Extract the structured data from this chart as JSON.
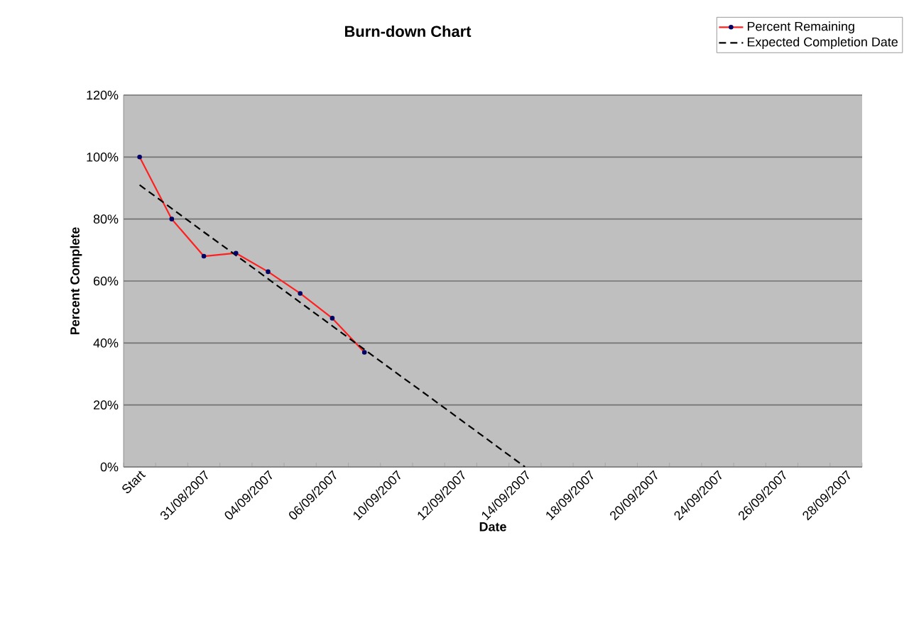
{
  "chart_data": {
    "type": "line",
    "title": "Burn-down Chart",
    "xlabel": "Date",
    "ylabel": "Percent Complete",
    "categories": [
      "Start",
      null,
      "31/08/2007",
      null,
      "04/09/2007",
      null,
      "06/09/2007",
      null,
      "10/09/2007",
      null,
      "12/09/2007",
      null,
      "14/09/2007",
      null,
      "18/09/2007",
      null,
      "20/09/2007",
      null,
      "24/09/2007",
      null,
      "26/09/2007",
      null,
      "28/09/2007"
    ],
    "series": [
      {
        "name": "Percent Remaining",
        "color": "#ff2020",
        "marker": "circle",
        "line_style": "solid",
        "values": [
          100,
          80,
          68,
          69,
          63,
          56,
          48,
          37,
          null,
          null,
          null,
          null,
          null,
          null,
          null,
          null,
          null,
          null,
          null,
          null,
          null,
          null,
          null
        ]
      },
      {
        "name": "Expected Completion Date",
        "color": "#000000",
        "marker": "none",
        "line_style": "dashed",
        "values": [
          91,
          83.4,
          75.8,
          68.3,
          60.7,
          53.1,
          45.5,
          37.9,
          30.3,
          22.8,
          15.2,
          7.6,
          0,
          null,
          null,
          null,
          null,
          null,
          null,
          null,
          null,
          null,
          null
        ]
      }
    ],
    "ylim": [
      0,
      120
    ],
    "yticks": [
      {
        "value": 0,
        "label": "0%"
      },
      {
        "value": 20,
        "label": "20%"
      },
      {
        "value": 40,
        "label": "40%"
      },
      {
        "value": 60,
        "label": "60%"
      },
      {
        "value": 80,
        "label": "80%"
      },
      {
        "value": 100,
        "label": "100%"
      },
      {
        "value": 120,
        "label": "120%"
      }
    ],
    "grid": "y",
    "legend": "top right"
  }
}
